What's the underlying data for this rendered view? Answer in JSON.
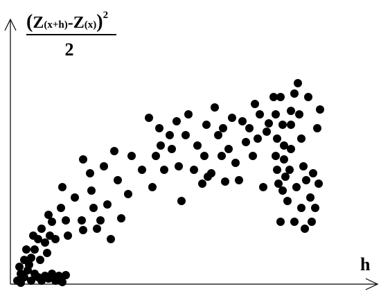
{
  "chart_data": {
    "type": "scatter",
    "x_label": "h",
    "y_label": {
      "numerator": [
        "(",
        "Z",
        "(x+h)",
        "-Z",
        "(x)",
        ")"
      ],
      "exponent": "2",
      "denominator": "2"
    },
    "color": "#000000",
    "xlim": [
      0,
      530
    ],
    "ylim": [
      0,
      385
    ],
    "x": [
      10,
      15,
      20,
      13,
      25,
      30,
      35,
      20,
      30,
      15,
      40,
      45,
      50,
      55,
      60,
      65,
      70,
      75,
      80,
      27,
      23,
      35,
      40,
      33,
      45,
      50,
      55,
      57,
      65,
      53,
      43,
      60,
      75,
      73,
      83,
      80,
      105,
      103,
      105,
      93,
      115,
      117,
      120,
      125,
      130,
      145,
      140,
      135,
      150,
      155,
      160,
      170,
      175,
      190,
      200,
      205,
      210,
      215,
      217,
      222,
      230,
      233,
      240,
      243,
      247,
      253,
      257,
      265,
      270,
      277,
      280,
      283,
      285,
      290,
      295,
      300,
      305,
      307,
      310,
      315,
      320,
      325,
      330,
      335,
      340,
      345,
      350,
      353,
      357,
      360,
      365,
      370,
      373,
      380,
      383,
      385,
      383,
      385,
      387,
      390,
      393,
      395,
      395,
      397,
      390,
      393,
      400,
      403,
      405,
      405,
      405,
      410,
      413,
      410,
      415,
      417,
      420,
      420,
      423,
      425,
      427,
      430,
      433,
      435,
      437,
      440,
      443,
      445,
      447
    ],
    "y": [
      5,
      15,
      10,
      25,
      20,
      5,
      15,
      35,
      38,
      2,
      10,
      5,
      12,
      8,
      15,
      5,
      12,
      3,
      13,
      28,
      50,
      50,
      65,
      70,
      80,
      60,
      100,
      70,
      65,
      45,
      35,
      90,
      140,
      110,
      70,
      92,
      180,
      92,
      78,
      125,
      160,
      135,
      110,
      80,
      92,
      65,
      115,
      170,
      192,
      150,
      95,
      130,
      185,
      165,
      240,
      140,
      185,
      225,
      200,
      165,
      215,
      195,
      235,
      170,
      120,
      215,
      245,
      165,
      200,
      145,
      185,
      230,
      155,
      160,
      255,
      215,
      185,
      225,
      148,
      195,
      240,
      175,
      150,
      235,
      205,
      225,
      185,
      260,
      210,
      245,
      140,
      220,
      232,
      270,
      245,
      210,
      185,
      165,
      145,
      270,
      230,
      200,
      180,
      155,
      90,
      135,
      120,
      165,
      250,
      230,
      195,
      275,
      140,
      90,
      290,
      245,
      210,
      110,
      170,
      80,
      150,
      270,
      125,
      90,
      160,
      110,
      225,
      145,
      252
    ]
  }
}
